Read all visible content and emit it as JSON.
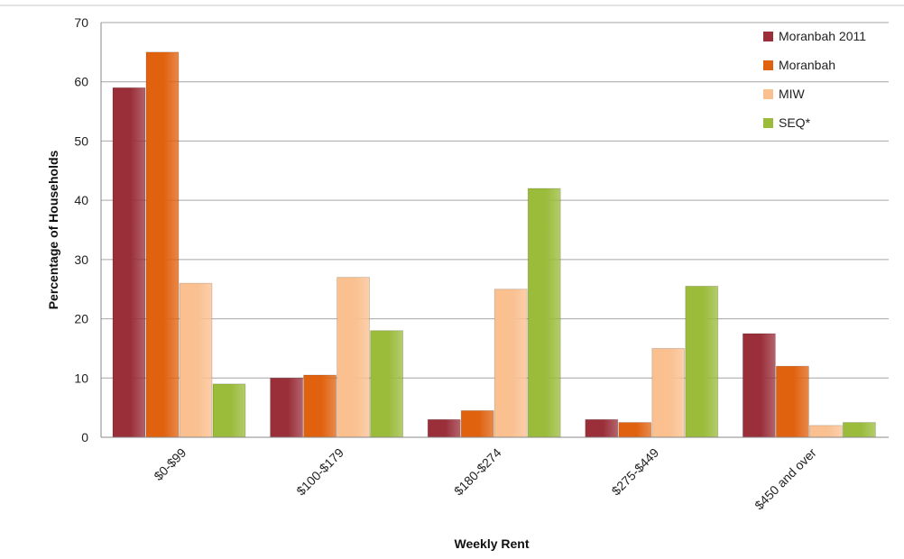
{
  "chart_data": {
    "type": "bar",
    "categories": [
      "$0-$99",
      "$100-$179",
      "$180-$274",
      "$275-$449",
      "$450 and over"
    ],
    "series": [
      {
        "name": "Moranbah 2011",
        "color": "#9a2f3a",
        "values": [
          59,
          10,
          3,
          3,
          17.5
        ]
      },
      {
        "name": "Moranbah",
        "color": "#e0620f",
        "values": [
          65,
          10.5,
          4.5,
          2.5,
          12
        ]
      },
      {
        "name": "MIW",
        "color": "#fac090",
        "values": [
          26,
          27,
          25,
          15,
          2
        ]
      },
      {
        "name": "SEQ*",
        "color": "#9bbb3b",
        "values": [
          9,
          18,
          42,
          25.5,
          2.5
        ]
      }
    ],
    "xlabel": "Weekly Rent",
    "ylabel": "Percentage of Households",
    "ylim": [
      0,
      70
    ],
    "yticks": [
      "0",
      "10",
      "20",
      "30",
      "40",
      "50",
      "60",
      "70"
    ],
    "grid": true,
    "legend_position": "top-right"
  }
}
